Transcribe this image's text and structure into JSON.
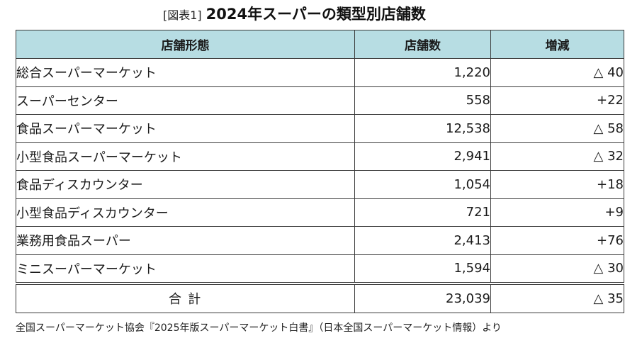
{
  "title": {
    "label": "[図表1]",
    "main": "2024年スーパーの類型別店舗数"
  },
  "table": {
    "headers": [
      "店舗形態",
      "店舗数",
      "増減"
    ],
    "rows": [
      {
        "type": "総合スーパーマーケット",
        "stores": "1,220",
        "change": "△ 40"
      },
      {
        "type": "スーパーセンター",
        "stores": "558",
        "change": "+22"
      },
      {
        "type": "食品スーパーマーケット",
        "stores": "12,538",
        "change": "△ 58"
      },
      {
        "type": "小型食品スーパーマーケット",
        "stores": "2,941",
        "change": "△ 32"
      },
      {
        "type": "食品ディスカウンター",
        "stores": "1,054",
        "change": "+18"
      },
      {
        "type": "小型食品ディスカウンター",
        "stores": "721",
        "change": "+9"
      },
      {
        "type": "業務用食品スーパー",
        "stores": "2,413",
        "change": "+76"
      },
      {
        "type": "ミニスーパーマーケット",
        "stores": "1,594",
        "change": "△ 30"
      }
    ],
    "total": {
      "label": "合 計",
      "stores": "23,039",
      "change": "△ 35"
    }
  },
  "source": "全国スーパーマーケット協会『2025年版スーパーマーケット白書』（日本全国スーパーマーケット情報）より"
}
